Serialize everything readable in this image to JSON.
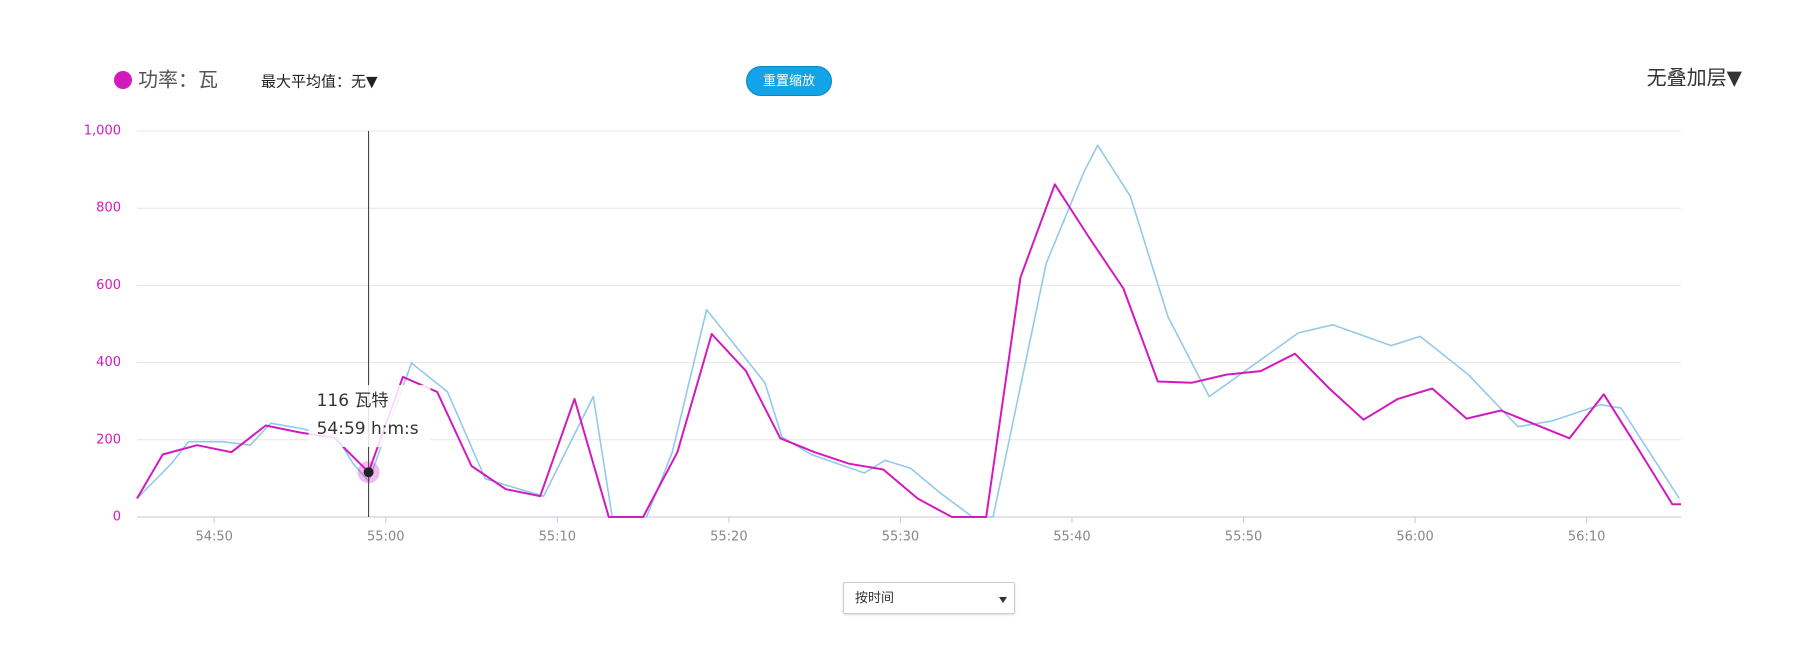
{
  "chart_data": {
    "type": "line",
    "xlim": [
      3285.5,
      3375.5
    ],
    "xticks": [
      {
        "value": 3290,
        "label": "54:50"
      },
      {
        "value": 3300,
        "label": "55:00"
      },
      {
        "value": 3310,
        "label": "55:10"
      },
      {
        "value": 3320,
        "label": "55:20"
      },
      {
        "value": 3330,
        "label": "55:30"
      },
      {
        "value": 3340,
        "label": "55:40"
      },
      {
        "value": 3350,
        "label": "55:50"
      },
      {
        "value": 3360,
        "label": "56:00"
      },
      {
        "value": 3370,
        "label": "56:10"
      }
    ],
    "ylim": [
      0,
      1000
    ],
    "yticks": [
      0,
      200,
      400,
      600,
      800,
      {
        "value": 1000,
        "label": "1,000"
      }
    ],
    "grid": true,
    "series": [
      {
        "name": "功率：瓦",
        "color": "#d21bbd",
        "x": [
          3285.5,
          3287,
          3289,
          3291,
          3293,
          3295,
          3297,
          3299,
          3301,
          3303,
          3305,
          3307,
          3309,
          3311,
          3313,
          3315,
          3317,
          3319,
          3321,
          3323,
          3325,
          3327,
          3329,
          3331,
          3333,
          3335,
          3337,
          3339,
          3341,
          3343,
          3345,
          3347,
          3349,
          3351,
          3353,
          3355,
          3357,
          3359,
          3361,
          3363,
          3365,
          3367,
          3369,
          3371,
          3373,
          3375,
          3375.5
        ],
        "values": [
          48,
          162,
          186,
          168,
          237,
          219,
          205,
          116,
          363,
          324,
          132,
          72,
          54,
          306,
          0,
          0,
          168,
          474,
          378,
          204,
          168,
          138,
          123,
          48,
          0,
          0,
          621,
          862,
          724,
          592,
          351,
          348,
          369,
          378,
          423,
          333,
          252,
          306,
          333,
          255,
          276,
          240,
          204,
          318,
          177,
          33,
          33
        ]
      },
      {
        "color": "#94c9ea",
        "x": [
          3285.5,
          3287.5,
          3288.5,
          3290.5,
          3292.1,
          3293.3,
          3295.2,
          3297.2,
          3298.1,
          3299,
          3301.5,
          3303.6,
          3305.8,
          3307.8,
          3309.2,
          3312.1,
          3313.2,
          3315.2,
          3316.7,
          3318.7,
          3322.1,
          3323.1,
          3324.8,
          3327.9,
          3329.1,
          3330.6,
          3332.3,
          3334.2,
          3335.4,
          3338.5,
          3340.7,
          3341.5,
          3343.4,
          3345.6,
          3348,
          3353.2,
          3355.2,
          3358.6,
          3360.3,
          3363.1,
          3366,
          3368,
          3370.8,
          3372,
          3375.4
        ],
        "values": [
          48,
          138,
          195,
          195,
          186,
          243,
          228,
          204,
          138,
          93,
          399,
          324,
          99,
          72,
          54,
          312,
          0,
          0,
          168,
          537,
          348,
          207,
          162,
          114,
          147,
          126,
          63,
          0,
          0,
          657,
          894,
          963,
          831,
          519,
          312,
          477,
          498,
          444,
          468,
          369,
          234,
          249,
          291,
          282,
          48
        ]
      }
    ],
    "tooltip": {
      "value_text": "116 瓦特",
      "time_text": "54:59 h:m:s"
    },
    "controls": {
      "max_average": "最大平均值：无▼",
      "reset_zoom": "重置缩放",
      "overlay": "无叠加层▼",
      "x_mode": "按时间"
    }
  }
}
